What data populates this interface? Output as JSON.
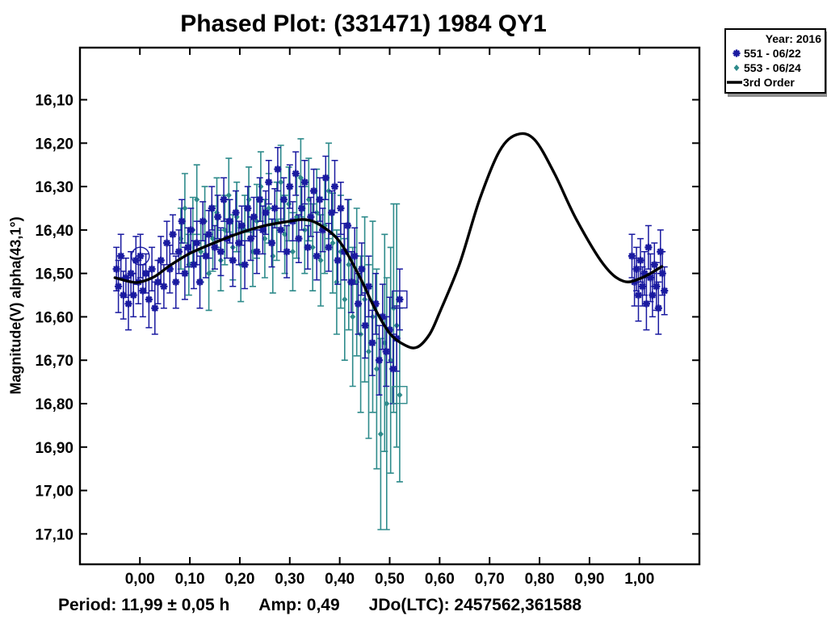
{
  "title": "Phased Plot: (331471) 1984 QY1",
  "legend": {
    "title": "Year: 2016",
    "items": [
      {
        "label": "551 - 06/22",
        "marker": "asterisk",
        "color": "#1A1AA0"
      },
      {
        "label": "553 - 06/24",
        "marker": "diamond",
        "color": "#2E8B8B"
      },
      {
        "label": "3rd Order",
        "marker": "line",
        "color": "#000000"
      }
    ]
  },
  "footer": {
    "period": "Period: 11,99 ± 0,05 h",
    "amp": "Amp: 0,49",
    "jdo": "JDo(LTC): 2457562,361588"
  },
  "chart_data": {
    "type": "scatter",
    "title": "Phased Plot: (331471) 1984 QY1",
    "xlabel": "",
    "ylabel": "Magnitude(V) alpha(43,1°)",
    "xlim": [
      -0.12,
      1.12
    ],
    "ylim": [
      15.98,
      17.17
    ],
    "y_inverted_magnitude_axis": true,
    "grid": false,
    "legend_position": "top-right",
    "x_ticks": {
      "values": [
        0.0,
        0.1,
        0.2,
        0.3,
        0.4,
        0.5,
        0.6,
        0.7,
        0.8,
        0.9,
        1.0
      ],
      "labels": [
        "0,00",
        "0,10",
        "0,20",
        "0,30",
        "0,40",
        "0,50",
        "0,60",
        "0,70",
        "0,80",
        "0,90",
        "1,00"
      ]
    },
    "y_ticks": {
      "values": [
        16.1,
        16.2,
        16.3,
        16.4,
        16.5,
        16.6,
        16.7,
        16.8,
        16.9,
        17.0,
        17.1
      ],
      "labels": [
        "16,10",
        "16,20",
        "16,30",
        "16,40",
        "16,50",
        "16,60",
        "16,70",
        "16,80",
        "16,90",
        "17,00",
        "17,10"
      ]
    },
    "series": [
      {
        "name": "551 - 06/22",
        "marker": "asterisk",
        "color": "#1A1AA0",
        "points_format": [
          "phase",
          "magnitude",
          "error"
        ],
        "points": [
          [
            -0.047,
            16.49,
            0.05
          ],
          [
            -0.043,
            16.53,
            0.06
          ],
          [
            -0.038,
            16.46,
            0.05
          ],
          [
            -0.033,
            16.55,
            0.055
          ],
          [
            -0.028,
            16.51,
            0.045
          ],
          [
            -0.023,
            16.57,
            0.06
          ],
          [
            -0.018,
            16.5,
            0.05
          ],
          [
            -0.013,
            16.55,
            0.05
          ],
          [
            -0.008,
            16.47,
            0.055
          ],
          [
            -0.003,
            16.52,
            0.05
          ],
          [
            0.001,
            16.46,
            0.05
          ],
          [
            0.006,
            16.54,
            0.06
          ],
          [
            0.012,
            16.5,
            0.045
          ],
          [
            0.018,
            16.56,
            0.065
          ],
          [
            0.024,
            16.49,
            0.05
          ],
          [
            0.03,
            16.58,
            0.06
          ],
          [
            0.036,
            16.52,
            0.05
          ],
          [
            0.042,
            16.47,
            0.055
          ],
          [
            0.048,
            16.53,
            0.05
          ],
          [
            0.054,
            16.43,
            0.05
          ],
          [
            0.06,
            16.49,
            0.055
          ],
          [
            0.066,
            16.41,
            0.045
          ],
          [
            0.072,
            16.52,
            0.06
          ],
          [
            0.078,
            16.45,
            0.05
          ],
          [
            0.084,
            16.38,
            0.05
          ],
          [
            0.09,
            16.5,
            0.06
          ],
          [
            0.096,
            16.44,
            0.045
          ],
          [
            0.102,
            16.4,
            0.05
          ],
          [
            0.108,
            16.48,
            0.055
          ],
          [
            0.114,
            16.43,
            0.05
          ],
          [
            0.12,
            16.52,
            0.06
          ],
          [
            0.126,
            16.38,
            0.045
          ],
          [
            0.132,
            16.46,
            0.05
          ],
          [
            0.138,
            16.41,
            0.055
          ],
          [
            0.144,
            16.35,
            0.05
          ],
          [
            0.15,
            16.44,
            0.05
          ],
          [
            0.156,
            16.37,
            0.05
          ],
          [
            0.162,
            16.45,
            0.055
          ],
          [
            0.168,
            16.33,
            0.05
          ],
          [
            0.174,
            16.42,
            0.045
          ],
          [
            0.18,
            16.38,
            0.05
          ],
          [
            0.186,
            16.47,
            0.06
          ],
          [
            0.192,
            16.36,
            0.05
          ],
          [
            0.198,
            16.43,
            0.05
          ],
          [
            0.204,
            16.39,
            0.045
          ],
          [
            0.21,
            16.48,
            0.055
          ],
          [
            0.216,
            16.35,
            0.05
          ],
          [
            0.222,
            16.42,
            0.05
          ],
          [
            0.228,
            16.37,
            0.045
          ],
          [
            0.234,
            16.45,
            0.05
          ],
          [
            0.24,
            16.33,
            0.05
          ],
          [
            0.246,
            16.4,
            0.055
          ],
          [
            0.252,
            16.36,
            0.05
          ],
          [
            0.258,
            16.29,
            0.05
          ],
          [
            0.264,
            16.43,
            0.055
          ],
          [
            0.27,
            16.35,
            0.045
          ],
          [
            0.276,
            16.26,
            0.05
          ],
          [
            0.282,
            16.4,
            0.05
          ],
          [
            0.288,
            16.33,
            0.05
          ],
          [
            0.294,
            16.45,
            0.06
          ],
          [
            0.3,
            16.3,
            0.05
          ],
          [
            0.306,
            16.38,
            0.045
          ],
          [
            0.312,
            16.27,
            0.05
          ],
          [
            0.318,
            16.42,
            0.055
          ],
          [
            0.324,
            16.35,
            0.05
          ],
          [
            0.33,
            16.29,
            0.05
          ],
          [
            0.336,
            16.44,
            0.05
          ],
          [
            0.342,
            16.37,
            0.045
          ],
          [
            0.348,
            16.31,
            0.05
          ],
          [
            0.354,
            16.46,
            0.055
          ],
          [
            0.36,
            16.33,
            0.05
          ],
          [
            0.366,
            16.4,
            0.05
          ],
          [
            0.372,
            16.28,
            0.05
          ],
          [
            0.378,
            16.44,
            0.055
          ],
          [
            0.384,
            16.36,
            0.05
          ],
          [
            0.39,
            16.3,
            0.06
          ],
          [
            0.396,
            16.47,
            0.055
          ],
          [
            0.402,
            16.35,
            0.06
          ],
          [
            0.409,
            16.45,
            0.065
          ],
          [
            0.416,
            16.39,
            0.06
          ],
          [
            0.423,
            16.52,
            0.07
          ],
          [
            0.43,
            16.46,
            0.065
          ],
          [
            0.437,
            16.57,
            0.07
          ],
          [
            0.444,
            16.49,
            0.06
          ],
          [
            0.451,
            16.62,
            0.075
          ],
          [
            0.458,
            16.53,
            0.07
          ],
          [
            0.465,
            16.66,
            0.075
          ],
          [
            0.472,
            16.57,
            0.07
          ],
          [
            0.479,
            16.7,
            0.08
          ],
          [
            0.486,
            16.6,
            0.075
          ],
          [
            0.493,
            16.68,
            0.08
          ],
          [
            0.5,
            16.63,
            0.075
          ],
          [
            0.507,
            16.72,
            0.08
          ],
          [
            0.514,
            16.65,
            0.075
          ],
          [
            0.52,
            16.56,
            0.07
          ],
          [
            0.985,
            16.46,
            0.05
          ],
          [
            0.99,
            16.52,
            0.055
          ],
          [
            0.994,
            16.49,
            0.05
          ],
          [
            0.998,
            16.55,
            0.06
          ],
          [
            1.002,
            16.47,
            0.05
          ],
          [
            1.006,
            16.53,
            0.045
          ],
          [
            1.01,
            16.5,
            0.05
          ],
          [
            1.014,
            16.57,
            0.06
          ],
          [
            1.018,
            16.44,
            0.05
          ],
          [
            1.022,
            16.51,
            0.055
          ],
          [
            1.026,
            16.55,
            0.05
          ],
          [
            1.03,
            16.48,
            0.05
          ],
          [
            1.034,
            16.53,
            0.055
          ],
          [
            1.038,
            16.58,
            0.06
          ],
          [
            1.042,
            16.45,
            0.05
          ],
          [
            1.046,
            16.5,
            0.05
          ],
          [
            1.05,
            16.54,
            0.055
          ]
        ]
      },
      {
        "name": "553 - 06/24",
        "marker": "diamond",
        "color": "#2E8B8B",
        "points_format": [
          "phase",
          "magnitude",
          "error"
        ],
        "points": [
          [
            0.082,
            16.42,
            0.07
          ],
          [
            0.09,
            16.35,
            0.08
          ],
          [
            0.098,
            16.48,
            0.07
          ],
          [
            0.106,
            16.4,
            0.075
          ],
          [
            0.114,
            16.33,
            0.08
          ],
          [
            0.122,
            16.45,
            0.07
          ],
          [
            0.13,
            16.38,
            0.08
          ],
          [
            0.138,
            16.5,
            0.085
          ],
          [
            0.146,
            16.42,
            0.075
          ],
          [
            0.154,
            16.36,
            0.08
          ],
          [
            0.162,
            16.47,
            0.07
          ],
          [
            0.17,
            16.4,
            0.08
          ],
          [
            0.178,
            16.32,
            0.085
          ],
          [
            0.186,
            16.44,
            0.075
          ],
          [
            0.194,
            16.37,
            0.08
          ],
          [
            0.202,
            16.48,
            0.085
          ],
          [
            0.21,
            16.4,
            0.08
          ],
          [
            0.218,
            16.33,
            0.075
          ],
          [
            0.226,
            16.45,
            0.08
          ],
          [
            0.234,
            16.38,
            0.085
          ],
          [
            0.242,
            16.3,
            0.08
          ],
          [
            0.25,
            16.42,
            0.09
          ],
          [
            0.258,
            16.35,
            0.08
          ],
          [
            0.266,
            16.46,
            0.085
          ],
          [
            0.274,
            16.38,
            0.09
          ],
          [
            0.282,
            16.29,
            0.085
          ],
          [
            0.29,
            16.41,
            0.09
          ],
          [
            0.298,
            16.34,
            0.085
          ],
          [
            0.306,
            16.45,
            0.09
          ],
          [
            0.314,
            16.37,
            0.095
          ],
          [
            0.322,
            16.28,
            0.09
          ],
          [
            0.33,
            16.4,
            0.1
          ],
          [
            0.338,
            16.33,
            0.095
          ],
          [
            0.346,
            16.44,
            0.1
          ],
          [
            0.354,
            16.36,
            0.1
          ],
          [
            0.362,
            16.47,
            0.105
          ],
          [
            0.37,
            16.39,
            0.11
          ],
          [
            0.378,
            16.31,
            0.11
          ],
          [
            0.386,
            16.43,
            0.115
          ],
          [
            0.394,
            16.52,
            0.12
          ],
          [
            0.402,
            16.45,
            0.13
          ],
          [
            0.41,
            16.56,
            0.14
          ],
          [
            0.418,
            16.48,
            0.15
          ],
          [
            0.426,
            16.6,
            0.16
          ],
          [
            0.434,
            16.52,
            0.17
          ],
          [
            0.442,
            16.64,
            0.18
          ],
          [
            0.45,
            16.56,
            0.19
          ],
          [
            0.458,
            16.68,
            0.2
          ],
          [
            0.466,
            16.6,
            0.22
          ],
          [
            0.474,
            16.72,
            0.23
          ],
          [
            0.482,
            16.87,
            0.22
          ],
          [
            0.49,
            16.66,
            0.25
          ],
          [
            0.494,
            16.8,
            0.29
          ],
          [
            0.502,
            16.7,
            0.26
          ],
          [
            0.508,
            16.58,
            0.24
          ],
          [
            0.514,
            16.62,
            0.28
          ],
          [
            0.52,
            16.78,
            0.2
          ]
        ]
      }
    ],
    "fit_curve": {
      "name": "3rd Order",
      "color": "#000000",
      "points": [
        [
          -0.05,
          16.51
        ],
        [
          -0.02,
          16.519
        ],
        [
          0.0,
          16.52
        ],
        [
          0.03,
          16.507
        ],
        [
          0.06,
          16.482
        ],
        [
          0.1,
          16.454
        ],
        [
          0.15,
          16.429
        ],
        [
          0.2,
          16.407
        ],
        [
          0.25,
          16.39
        ],
        [
          0.3,
          16.38
        ],
        [
          0.33,
          16.376
        ],
        [
          0.36,
          16.388
        ],
        [
          0.4,
          16.427
        ],
        [
          0.44,
          16.508
        ],
        [
          0.47,
          16.58
        ],
        [
          0.5,
          16.638
        ],
        [
          0.53,
          16.665
        ],
        [
          0.555,
          16.67
        ],
        [
          0.58,
          16.64
        ],
        [
          0.6,
          16.59
        ],
        [
          0.64,
          16.478
        ],
        [
          0.68,
          16.33
        ],
        [
          0.72,
          16.218
        ],
        [
          0.755,
          16.18
        ],
        [
          0.79,
          16.192
        ],
        [
          0.83,
          16.27
        ],
        [
          0.873,
          16.374
        ],
        [
          0.928,
          16.479
        ],
        [
          0.968,
          16.518
        ],
        [
          1.005,
          16.51
        ],
        [
          1.045,
          16.484
        ]
      ]
    },
    "highlights": {
      "circled_point": {
        "series": 0,
        "phase": 0.001,
        "mag": 16.46
      },
      "squared_points": [
        {
          "series": 0,
          "phase": 0.52,
          "mag": 16.56
        },
        {
          "series": 1,
          "phase": 0.52,
          "mag": 16.78
        }
      ]
    }
  }
}
